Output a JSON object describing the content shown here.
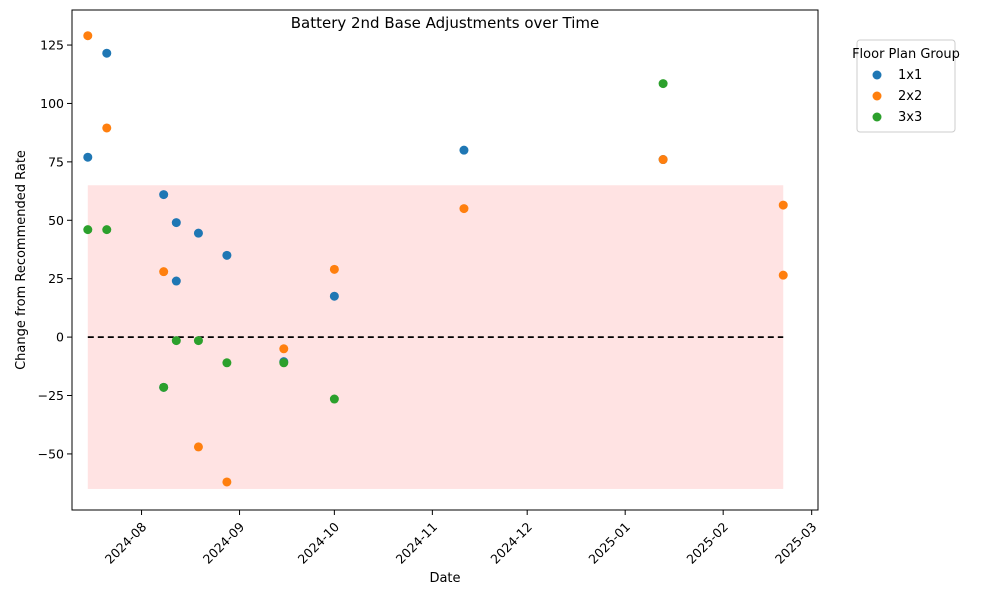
{
  "chart_data": {
    "type": "scatter",
    "title": "Battery 2nd Base Adjustments over Time",
    "xlabel": "Date",
    "ylabel": "Change from Recommended Rate",
    "x_ticks": [
      "2024-08-01",
      "2024-09-01",
      "2024-10-01",
      "2024-11-01",
      "2024-12-01",
      "2025-01-01",
      "2025-02-01",
      "2025-03-01"
    ],
    "x_tick_labels": [
      "2024-08",
      "2024-09",
      "2024-10",
      "2024-11",
      "2024-12",
      "2025-01",
      "2025-02",
      "2025-03"
    ],
    "y_ticks": [
      -50,
      -25,
      0,
      25,
      50,
      75,
      100,
      125
    ],
    "y_tick_labels": [
      "−50",
      "−25",
      "0",
      "25",
      "50",
      "75",
      "100",
      "125"
    ],
    "xlim": [
      "2024-07-10",
      "2025-03-03"
    ],
    "ylim": [
      -74,
      140
    ],
    "grid": false,
    "reference_line": {
      "y": 0,
      "style": "dashed",
      "color": "#000000",
      "x_start": "2024-07-15",
      "x_end": "2025-02-20"
    },
    "band": {
      "y_min": -65,
      "y_max": 65,
      "x_start": "2024-07-15",
      "x_end": "2025-02-20",
      "color": "#ff9999"
    },
    "legend": {
      "title": "Floor Plan Group",
      "placement": "outside-top-right"
    },
    "series": [
      {
        "name": "1x1",
        "color": "#1f77b4",
        "points": [
          {
            "x": "2024-07-15",
            "y": 77
          },
          {
            "x": "2024-07-21",
            "y": 121.5
          },
          {
            "x": "2024-08-08",
            "y": 61
          },
          {
            "x": "2024-08-08",
            "y": -21.5
          },
          {
            "x": "2024-08-12",
            "y": 49
          },
          {
            "x": "2024-08-12",
            "y": 24
          },
          {
            "x": "2024-08-19",
            "y": 44.5
          },
          {
            "x": "2024-08-28",
            "y": 35
          },
          {
            "x": "2024-09-15",
            "y": -10.5
          },
          {
            "x": "2024-10-01",
            "y": 17.5
          },
          {
            "x": "2024-11-11",
            "y": 80
          },
          {
            "x": "2025-01-13",
            "y": 76
          }
        ]
      },
      {
        "name": "2x2",
        "color": "#ff7f0e",
        "points": [
          {
            "x": "2024-07-15",
            "y": 129
          },
          {
            "x": "2024-07-21",
            "y": 89.5
          },
          {
            "x": "2024-08-08",
            "y": 28
          },
          {
            "x": "2024-08-19",
            "y": -47
          },
          {
            "x": "2024-08-28",
            "y": -62
          },
          {
            "x": "2024-09-15",
            "y": -5
          },
          {
            "x": "2024-10-01",
            "y": 29
          },
          {
            "x": "2024-11-11",
            "y": 55
          },
          {
            "x": "2025-01-13",
            "y": 76
          },
          {
            "x": "2025-02-20",
            "y": 56.5
          },
          {
            "x": "2025-02-20",
            "y": 26.5
          }
        ]
      },
      {
        "name": "3x3",
        "color": "#2ca02c",
        "points": [
          {
            "x": "2024-07-15",
            "y": 46
          },
          {
            "x": "2024-07-21",
            "y": 46
          },
          {
            "x": "2024-08-08",
            "y": -21.5
          },
          {
            "x": "2024-08-12",
            "y": -1.5
          },
          {
            "x": "2024-08-19",
            "y": -1.5
          },
          {
            "x": "2024-08-28",
            "y": -11
          },
          {
            "x": "2024-09-15",
            "y": -11
          },
          {
            "x": "2024-10-01",
            "y": -26.5
          },
          {
            "x": "2025-01-13",
            "y": 108.5
          }
        ]
      }
    ]
  }
}
